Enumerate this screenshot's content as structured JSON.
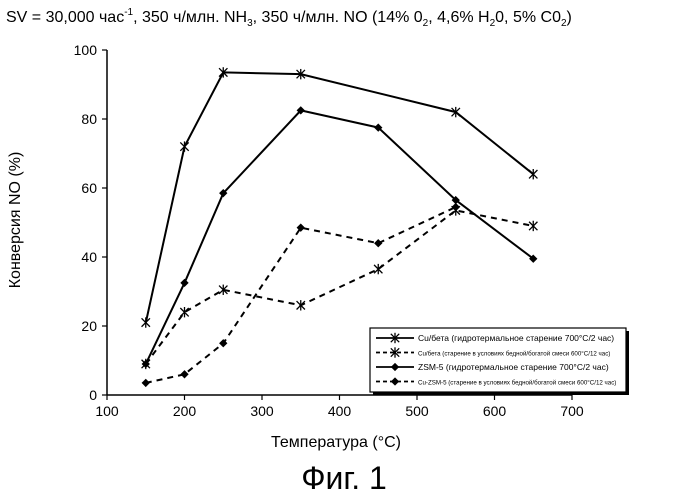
{
  "chart_data": {
    "type": "line",
    "title": "SV = 30,000 час",
    "title_sup": "-1",
    "title_rest": ", 350 ч/млн. NH",
    "title_sub1": "3",
    "title_rest2": ", 350 ч/млн. NO (14% 0",
    "title_sub2": "2",
    "title_rest3": ", 4,6% H",
    "title_sub3": "2",
    "title_rest4": "0, 5% C0",
    "title_sub4": "2",
    "title_end": ")",
    "xlabel": "Температура (°C)",
    "ylabel": "Конверсия NO (%)",
    "xlim": [
      100,
      700
    ],
    "ylim": [
      0,
      100
    ],
    "x_ticks": [
      100,
      200,
      300,
      400,
      500,
      600,
      700
    ],
    "y_ticks": [
      0,
      20,
      40,
      60,
      80,
      100
    ],
    "grid": false,
    "legend_position": "bottom-right",
    "series": [
      {
        "name": "Cu/бета (гидротермальное старение 700°C/2 час)",
        "marker": "star",
        "line": "solid",
        "x": [
          150,
          200,
          250,
          350,
          550,
          650
        ],
        "y": [
          21,
          72,
          93.5,
          93,
          82,
          64
        ]
      },
      {
        "name": "Cu/бета (старение в условиях бедной/богатой смеси 600°C/12 час)",
        "marker": "star",
        "line": "dashed",
        "x": [
          150,
          200,
          250,
          350,
          450,
          550,
          650
        ],
        "y": [
          9,
          24,
          30.5,
          26,
          36.5,
          53.5,
          49
        ]
      },
      {
        "name": "ZSM-5 (гидротермальное старение 700°C/2 час)",
        "marker": "diamond",
        "line": "solid",
        "x": [
          150,
          200,
          250,
          350,
          450,
          550,
          650
        ],
        "y": [
          9,
          32.5,
          58.5,
          82.5,
          77.5,
          56.5,
          39.5
        ]
      },
      {
        "name": "Cu-ZSM-5 (старение в условиях бедной/богатой смеси 600°C/12 час)",
        "marker": "diamond",
        "line": "dashed",
        "x": [
          150,
          200,
          250,
          350,
          450,
          550
        ],
        "y": [
          3.5,
          6,
          15,
          48.5,
          44,
          54.5
        ]
      }
    ]
  },
  "caption": "Фиг. 1"
}
